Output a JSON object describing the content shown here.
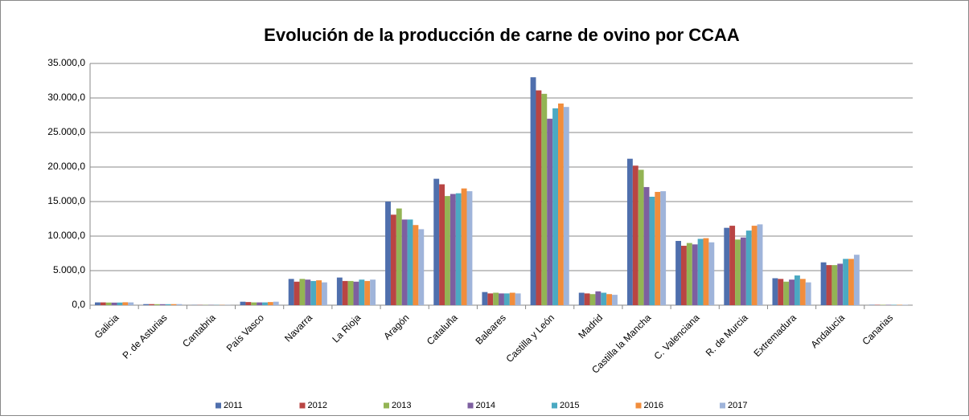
{
  "chart_data": {
    "type": "bar",
    "title": "Evolución de la producción de carne de ovino por CCAA",
    "categories": [
      "Galicia",
      "P. de Asturias",
      "Cantabria",
      "País Vasco",
      "Navarra",
      "La Rioja",
      "Aragón",
      "Cataluña",
      "Baleares",
      "Castilla y León",
      "Madrid",
      "Castilla la Mancha",
      "C. Valenciana",
      "R. de Murcia",
      "Extremadura",
      "Andalucía",
      "Canarias"
    ],
    "series": [
      {
        "name": "2011",
        "color": "#4f6fad",
        "values": [
          400,
          150,
          30,
          500,
          3800,
          4000,
          15000,
          18300,
          1900,
          33000,
          1800,
          21200,
          9300,
          11200,
          3900,
          6200,
          50
        ]
      },
      {
        "name": "2012",
        "color": "#b94543",
        "values": [
          400,
          150,
          30,
          450,
          3400,
          3500,
          13100,
          17500,
          1700,
          31100,
          1700,
          20200,
          8600,
          11500,
          3800,
          5800,
          50
        ]
      },
      {
        "name": "2013",
        "color": "#93b454",
        "values": [
          380,
          140,
          30,
          400,
          3800,
          3500,
          14000,
          15800,
          1800,
          30600,
          1600,
          19600,
          9000,
          9500,
          3400,
          5800,
          50
        ]
      },
      {
        "name": "2014",
        "color": "#7d5fa0",
        "values": [
          370,
          140,
          30,
          400,
          3700,
          3400,
          12400,
          16100,
          1700,
          27000,
          2000,
          17100,
          8800,
          9800,
          3700,
          6000,
          50
        ]
      },
      {
        "name": "2015",
        "color": "#4ba9c2",
        "values": [
          380,
          140,
          30,
          400,
          3500,
          3700,
          12400,
          16200,
          1700,
          28500,
          1800,
          15700,
          9600,
          10800,
          4300,
          6700,
          50
        ]
      },
      {
        "name": "2016",
        "color": "#f18d3c",
        "values": [
          420,
          150,
          30,
          450,
          3600,
          3500,
          11600,
          16900,
          1800,
          29200,
          1600,
          16400,
          9700,
          11500,
          3800,
          6700,
          50
        ]
      },
      {
        "name": "2017",
        "color": "#9fb4da",
        "values": [
          400,
          150,
          30,
          500,
          3300,
          3700,
          11000,
          16500,
          1700,
          28700,
          1500,
          16500,
          9100,
          11700,
          3300,
          7300,
          50
        ]
      }
    ],
    "ylim": [
      0,
      35000
    ],
    "yticks": [
      {
        "value": 0,
        "label": "0,0"
      },
      {
        "value": 5000,
        "label": "5.000,0"
      },
      {
        "value": 10000,
        "label": "10.000,0"
      },
      {
        "value": 15000,
        "label": "15.000,0"
      },
      {
        "value": 20000,
        "label": "20.000,0"
      },
      {
        "value": 25000,
        "label": "25.000,0"
      },
      {
        "value": 30000,
        "label": "30.000,0"
      },
      {
        "value": 35000,
        "label": "35.000,0"
      }
    ],
    "grid": true,
    "legend": "bottom"
  }
}
